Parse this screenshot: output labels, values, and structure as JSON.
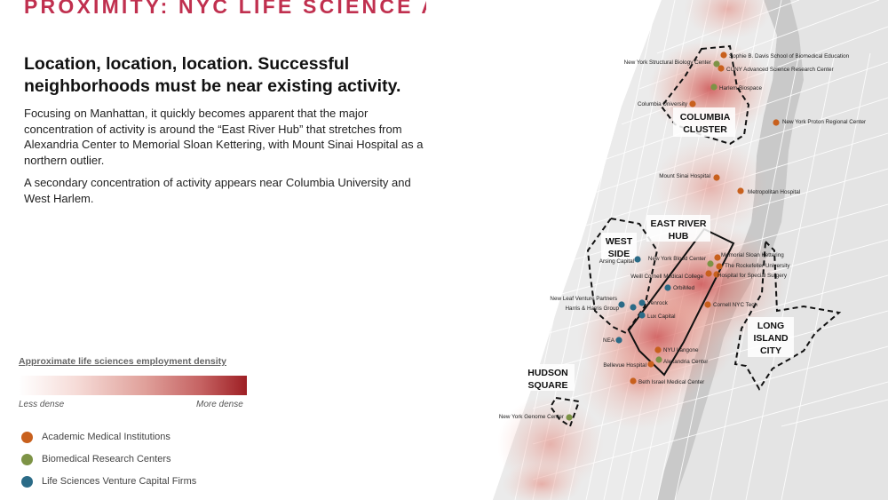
{
  "header": {
    "title": "PROXIMITY: NYC LIFE SCIENCE ANCHORS"
  },
  "intro": {
    "headline": "Location, location, location. Successful neighborhoods must be near existing activity.",
    "paragraph1": "Focusing on Manhattan, it quickly becomes apparent that the major concentration of activity is around the “East River Hub” that stretches from Alexandria Center to Memorial Sloan Kettering, with Mount Sinai Hospital as a northern outlier.",
    "paragraph2": "A secondary concentration of activity appears near Columbia University and West Harlem."
  },
  "legend": {
    "density_title": "Approximate life sciences employment density",
    "less_label": "Less dense",
    "more_label": "More dense",
    "categories": [
      {
        "label": "Academic Medical Institutions",
        "color": "#c8601d"
      },
      {
        "label": "Biomedical Research Centers",
        "color": "#7d9346"
      },
      {
        "label": "Life Sciences Venture Capital Firms",
        "color": "#2b6b87"
      }
    ]
  },
  "map": {
    "zones": [
      {
        "name": "COLUMBIA CLUSTER",
        "lines": [
          "COLUMBIA",
          "CLUSTER"
        ]
      },
      {
        "name": "EAST RIVER HUB",
        "lines": [
          "EAST RIVER",
          "HUB"
        ]
      },
      {
        "name": "WEST SIDE",
        "lines": [
          "WEST",
          "SIDE"
        ]
      },
      {
        "name": "LONG ISLAND CITY",
        "lines": [
          "LONG",
          "ISLAND",
          "CITY"
        ]
      },
      {
        "name": "HUDSON SQUARE",
        "lines": [
          "HUDSON",
          "SQUARE"
        ]
      }
    ],
    "points": [
      {
        "label": "Sophie B. Davis School of Biomedical Education",
        "category": "academic"
      },
      {
        "label": "New York Structural Biology Center",
        "category": "research"
      },
      {
        "label": "CUNY Advanced Science Research Center",
        "category": "academic"
      },
      {
        "label": "Harlem Biospace",
        "category": "research"
      },
      {
        "label": "Columbia University",
        "category": "academic"
      },
      {
        "label": "New York Proton Regional Center",
        "category": "academic"
      },
      {
        "label": "Mount Sinai Hospital",
        "category": "academic"
      },
      {
        "label": "Metropolitan Hospital",
        "category": "academic"
      },
      {
        "label": "Memorial Sloan Kettering",
        "category": "academic"
      },
      {
        "label": "The Rockefeller University",
        "category": "academic"
      },
      {
        "label": "Hospital for Special Surgery",
        "category": "academic"
      },
      {
        "label": "New York Blood Center",
        "category": "research"
      },
      {
        "label": "Weill Cornell Medical College",
        "category": "academic"
      },
      {
        "label": "Arsing Capital",
        "category": "vc"
      },
      {
        "label": "OrbiMed",
        "category": "vc"
      },
      {
        "label": "New Leaf Venture Partners",
        "category": "vc"
      },
      {
        "label": "Harris & Harris Group",
        "category": "vc"
      },
      {
        "label": "Venrock",
        "category": "vc"
      },
      {
        "label": "Lux Capital",
        "category": "vc"
      },
      {
        "label": "Cornell NYC Tech",
        "category": "academic"
      },
      {
        "label": "NEA",
        "category": "vc"
      },
      {
        "label": "NYU Langone",
        "category": "academic"
      },
      {
        "label": "Bellevue Hospital",
        "category": "academic"
      },
      {
        "label": "Alexandria Center",
        "category": "research"
      },
      {
        "label": "Beth Israel Medical Center",
        "category": "academic"
      },
      {
        "label": "New York Genome Center",
        "category": "research"
      }
    ]
  }
}
